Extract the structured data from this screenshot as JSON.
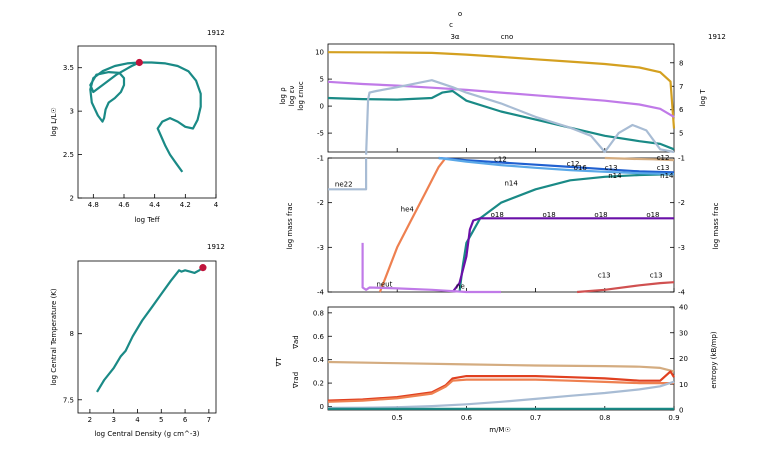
{
  "model_number": "1912",
  "top_markers": {
    "top_letter_1": "c",
    "top_letter_2": "o",
    "burn_1": "3α",
    "burn_2": "cno"
  },
  "colors": {
    "teal": "#1a8a86",
    "marker": "#c0143c",
    "gold": "#d4a020",
    "violet": "#c07ae8",
    "steel": "#a8bcd4",
    "orange": "#ee8050",
    "blue": "#2060d0",
    "purple": "#6a10a8",
    "lightblue": "#5aa8e8",
    "tan": "#d4ac80",
    "red": "#e04020",
    "brick": "#d05050"
  },
  "chart_data": [
    {
      "type": "line",
      "id": "hr",
      "title": "",
      "xlabel": "log Teff",
      "ylabel": "log L/L☉",
      "xlim": [
        4.9,
        4.0
      ],
      "ylim": [
        2.0,
        3.75
      ],
      "xticks": [
        "4.8",
        "4.6",
        "4.4",
        "4.2",
        "4"
      ],
      "yticks": [
        "2",
        "2.5",
        "3",
        "3.5"
      ],
      "series": [
        {
          "x": [
            4.22,
            4.26,
            4.3,
            4.33,
            4.36,
            4.38,
            4.35,
            4.3,
            4.25,
            4.2,
            4.15,
            4.12,
            4.1,
            4.1,
            4.13,
            4.18,
            4.25,
            4.33,
            4.42,
            4.5,
            4.58,
            4.66,
            4.74,
            4.8,
            4.82,
            4.81,
            4.77,
            4.74,
            4.73,
            4.72,
            4.7,
            4.66,
            4.62,
            4.6,
            4.6,
            4.63,
            4.7,
            4.78,
            4.82,
            4.8,
            4.74,
            4.65,
            4.55,
            4.5
          ],
          "y": [
            2.3,
            2.4,
            2.5,
            2.6,
            2.72,
            2.8,
            2.88,
            2.92,
            2.88,
            2.82,
            2.8,
            2.9,
            3.05,
            3.2,
            3.35,
            3.46,
            3.52,
            3.55,
            3.56,
            3.56,
            3.55,
            3.52,
            3.46,
            3.38,
            3.25,
            3.1,
            2.95,
            2.88,
            2.92,
            3.02,
            3.1,
            3.15,
            3.22,
            3.3,
            3.38,
            3.44,
            3.45,
            3.42,
            3.3,
            3.22,
            3.3,
            3.42,
            3.52,
            3.56
          ]
        }
      ],
      "current_point": {
        "x": 4.5,
        "y": 3.56
      }
    },
    {
      "type": "line",
      "id": "rho_t",
      "title": "",
      "xlabel": "log Central Density (g cm^-3)",
      "ylabel": "log Central Temperature (K)",
      "xlim": [
        1.5,
        7.3
      ],
      "ylim": [
        7.4,
        8.55
      ],
      "xticks": [
        "2",
        "3",
        "4",
        "5",
        "6",
        "7"
      ],
      "yticks": [
        "7.5",
        "8"
      ],
      "series": [
        {
          "x": [
            2.3,
            2.6,
            3.0,
            3.3,
            3.5,
            3.8,
            4.2,
            4.6,
            5.0,
            5.4,
            5.75,
            5.85,
            6.0,
            6.2,
            6.4,
            6.6,
            6.75
          ],
          "y": [
            7.56,
            7.65,
            7.74,
            7.83,
            7.87,
            7.98,
            8.1,
            8.2,
            8.3,
            8.4,
            8.48,
            8.47,
            8.48,
            8.47,
            8.46,
            8.48,
            8.5
          ]
        }
      ],
      "current_point": {
        "x": 6.75,
        "y": 8.5
      }
    },
    {
      "type": "line",
      "id": "structure",
      "title": "",
      "xlim": [
        0.4,
        0.9
      ],
      "ylim": [
        -8.5,
        11.5
      ],
      "y2lim": [
        4.2,
        8.8
      ],
      "yticks": [
        "-5",
        "0",
        "5",
        "10"
      ],
      "y2ticks": [
        "5",
        "6",
        "7",
        "8"
      ],
      "ylabels": [
        "log ρ",
        "log εν",
        "log εnuc"
      ],
      "y2label": "log T",
      "series": [
        {
          "name": "logT",
          "axis": "y2",
          "color": "gold",
          "x": [
            0.4,
            0.5,
            0.55,
            0.6,
            0.65,
            0.7,
            0.75,
            0.8,
            0.85,
            0.88,
            0.895,
            0.9
          ],
          "y": [
            8.45,
            8.44,
            8.42,
            8.35,
            8.25,
            8.15,
            8.05,
            7.95,
            7.8,
            7.6,
            7.2,
            5.2
          ]
        },
        {
          "name": "logRho",
          "axis": "y",
          "color": "violet",
          "x": [
            0.4,
            0.45,
            0.5,
            0.55,
            0.6,
            0.65,
            0.7,
            0.75,
            0.8,
            0.85,
            0.88,
            0.9
          ],
          "y": [
            4.5,
            4.1,
            3.8,
            3.4,
            3.0,
            2.5,
            2.0,
            1.5,
            1.0,
            0.3,
            -0.5,
            -2
          ]
        },
        {
          "name": "logEnuc",
          "axis": "y",
          "color": "teal",
          "x": [
            0.4,
            0.45,
            0.5,
            0.55,
            0.565,
            0.58,
            0.6,
            0.65,
            0.7,
            0.75,
            0.8,
            0.85,
            0.88,
            0.9
          ],
          "y": [
            1.5,
            1.3,
            1.2,
            1.5,
            2.5,
            2.8,
            1.0,
            -1.0,
            -2.5,
            -4,
            -5.5,
            -6.5,
            -7,
            -8
          ]
        },
        {
          "name": "logEnu",
          "axis": "y",
          "color": "steel",
          "x": [
            0.455,
            0.458,
            0.46,
            0.47,
            0.5,
            0.55,
            0.58,
            0.6,
            0.65,
            0.7,
            0.75,
            0.78,
            0.8,
            0.82,
            0.84,
            0.86,
            0.88,
            0.9
          ],
          "y": [
            -9,
            1.2,
            2.5,
            2.8,
            3.5,
            4.8,
            3.5,
            2.5,
            0.5,
            -2,
            -4,
            -5.5,
            -8.5,
            -5,
            -3.5,
            -4.5,
            -8,
            -8.5
          ]
        }
      ]
    },
    {
      "type": "line",
      "id": "abundance",
      "title": "",
      "ylabel": "log mass frac",
      "xlim": [
        0.4,
        0.9
      ],
      "ylim": [
        -4,
        -1
      ],
      "yticks": [
        "-4",
        "-3",
        "-2",
        "-1"
      ],
      "series": [
        {
          "name": "ne22",
          "color": "steel",
          "x": [
            0.4,
            0.455,
            0.455
          ],
          "y": [
            -1.7,
            -1.7,
            -1.0
          ]
        },
        {
          "name": "he4",
          "color": "orange",
          "x": [
            0.475,
            0.48,
            0.49,
            0.5,
            0.52,
            0.54,
            0.56,
            0.57
          ],
          "y": [
            -4,
            -3.8,
            -3.4,
            -3.0,
            -2.4,
            -1.8,
            -1.2,
            -1.0
          ]
        },
        {
          "name": "n14",
          "color": "teal",
          "x": [
            0.59,
            0.595,
            0.6,
            0.62,
            0.65,
            0.7,
            0.75,
            0.8,
            0.85,
            0.9
          ],
          "y": [
            -4,
            -3.4,
            -2.9,
            -2.35,
            -2.0,
            -1.7,
            -1.5,
            -1.42,
            -1.38,
            -1.36
          ]
        },
        {
          "name": "o16",
          "color": "blue",
          "x": [
            0.56,
            0.6,
            0.65,
            0.7,
            0.75,
            0.8,
            0.85,
            0.9
          ],
          "y": [
            -1.0,
            -1.05,
            -1.1,
            -1.15,
            -1.2,
            -1.25,
            -1.3,
            -1.32
          ]
        },
        {
          "name": "c12",
          "color": "lightblue",
          "x": [
            0.56,
            0.6,
            0.65,
            0.7,
            0.75,
            0.8,
            0.85,
            0.9
          ],
          "y": [
            -1.0,
            -1.08,
            -1.16,
            -1.22,
            -1.27,
            -1.31,
            -1.34,
            -1.36
          ]
        },
        {
          "name": "o18",
          "color": "purple",
          "x": [
            0.58,
            0.59,
            0.6,
            0.605,
            0.61,
            0.62,
            0.7,
            0.8,
            0.9
          ],
          "y": [
            -4,
            -3.8,
            -3.2,
            -2.6,
            -2.4,
            -2.35,
            -2.35,
            -2.35,
            -2.35
          ]
        },
        {
          "name": "neut",
          "color": "violet",
          "x": [
            0.45,
            0.45,
            0.455,
            0.46,
            0.5,
            0.55,
            0.6,
            0.65
          ],
          "y": [
            -2.9,
            -3.9,
            -3.95,
            -3.9,
            -3.92,
            -3.95,
            -4,
            -4
          ]
        },
        {
          "name": "c13",
          "color": "brick",
          "x": [
            0.76,
            0.8,
            0.85,
            0.88,
            0.9
          ],
          "y": [
            -4,
            -3.95,
            -3.85,
            -3.8,
            -3.78
          ]
        },
        {
          "name": "mg",
          "color": "tan",
          "x": [
            0.8,
            0.84,
            0.87,
            0.9
          ],
          "y": [
            -1.0,
            -1.02,
            -1.03,
            -1.05
          ]
        }
      ],
      "labels": [
        {
          "text": "ne22",
          "color": "steel"
        },
        {
          "text": "he4",
          "color": "orange"
        },
        {
          "text": "n14",
          "color": "teal"
        },
        {
          "text": "n14",
          "color": "teal"
        },
        {
          "text": "n14",
          "color": "teal"
        },
        {
          "text": "c12",
          "color": "lightblue"
        },
        {
          "text": "c12",
          "color": "lightblue"
        },
        {
          "text": "o16",
          "color": "blue"
        },
        {
          "text": "c13",
          "color": "blue"
        },
        {
          "text": "c13",
          "color": "teal"
        },
        {
          "text": "c12",
          "color": "tan"
        },
        {
          "text": "o18",
          "color": "purple"
        },
        {
          "text": "o18",
          "color": "purple"
        },
        {
          "text": "o18",
          "color": "purple"
        },
        {
          "text": "o18",
          "color": "purple"
        },
        {
          "text": "neut",
          "color": "violet"
        },
        {
          "text": "ne",
          "color": "violet"
        },
        {
          "text": "c13",
          "color": "brick"
        },
        {
          "text": "c13",
          "color": "brick"
        }
      ],
      "label_positions": [
        [
          0.41,
          -1.64
        ],
        [
          0.505,
          -2.2
        ],
        [
          0.655,
          -1.62
        ],
        [
          0.805,
          -1.45
        ],
        [
          0.88,
          -1.45
        ],
        [
          0.64,
          -1.08
        ],
        [
          0.745,
          -1.18
        ],
        [
          0.755,
          -1.27
        ],
        [
          0.8,
          -1.27
        ],
        [
          0.875,
          -1.27
        ],
        [
          0.875,
          -1.05
        ],
        [
          0.635,
          -2.32
        ],
        [
          0.71,
          -2.32
        ],
        [
          0.785,
          -2.32
        ],
        [
          0.86,
          -2.32
        ],
        [
          0.47,
          -3.88
        ],
        [
          0.585,
          -3.92
        ],
        [
          0.79,
          -3.68
        ],
        [
          0.865,
          -3.68
        ]
      ]
    },
    {
      "type": "line",
      "id": "gradients",
      "title": "",
      "xlabel": "m/M☉",
      "xlim": [
        0.4,
        0.9
      ],
      "ylim": [
        -0.03,
        0.85
      ],
      "y2lim": [
        0,
        40
      ],
      "xticks": [
        "0.5",
        "0.6",
        "0.7",
        "0.8",
        "0.9"
      ],
      "xtick_values": [
        0.5,
        0.6,
        0.7,
        0.8,
        0.9
      ],
      "yticks": [
        "0",
        "0.2",
        "0.4",
        "0.6",
        "0.8"
      ],
      "y2ticks": [
        "0",
        "10",
        "20",
        "30",
        "40"
      ],
      "ylabels": [
        "∇T",
        "∇ad",
        "∇rad"
      ],
      "y2label": "entropy (kB/mp)",
      "series": [
        {
          "name": "grad_ad",
          "color": "tan",
          "x": [
            0.4,
            0.5,
            0.6,
            0.7,
            0.8,
            0.85,
            0.88,
            0.9
          ],
          "y": [
            0.38,
            0.37,
            0.36,
            0.35,
            0.345,
            0.34,
            0.33,
            0.3
          ]
        },
        {
          "name": "grad_rad",
          "color": "red",
          "x": [
            0.4,
            0.45,
            0.5,
            0.55,
            0.57,
            0.58,
            0.6,
            0.65,
            0.7,
            0.75,
            0.8,
            0.85,
            0.88,
            0.895,
            0.9
          ],
          "y": [
            0.05,
            0.06,
            0.08,
            0.12,
            0.18,
            0.24,
            0.26,
            0.26,
            0.26,
            0.25,
            0.24,
            0.22,
            0.22,
            0.3,
            0.25
          ]
        },
        {
          "name": "grad_T",
          "color": "orange",
          "x": [
            0.4,
            0.45,
            0.5,
            0.55,
            0.57,
            0.58,
            0.6,
            0.65,
            0.7,
            0.75,
            0.8,
            0.85,
            0.9
          ],
          "y": [
            0.04,
            0.05,
            0.07,
            0.11,
            0.17,
            0.22,
            0.23,
            0.23,
            0.23,
            0.22,
            0.21,
            0.2,
            0.2
          ]
        },
        {
          "name": "entropy",
          "axis": "y2",
          "color": "steel",
          "x": [
            0.4,
            0.45,
            0.5,
            0.55,
            0.6,
            0.65,
            0.7,
            0.75,
            0.8,
            0.85,
            0.88,
            0.9
          ],
          "y": [
            0.8,
            0.9,
            1.1,
            1.5,
            2.2,
            3.2,
            4.3,
            5.5,
            6.6,
            8,
            9.2,
            11
          ]
        },
        {
          "name": "mix",
          "color": "teal",
          "x": [
            0.4,
            0.9
          ],
          "y": [
            -0.02,
            -0.02
          ]
        }
      ]
    }
  ]
}
